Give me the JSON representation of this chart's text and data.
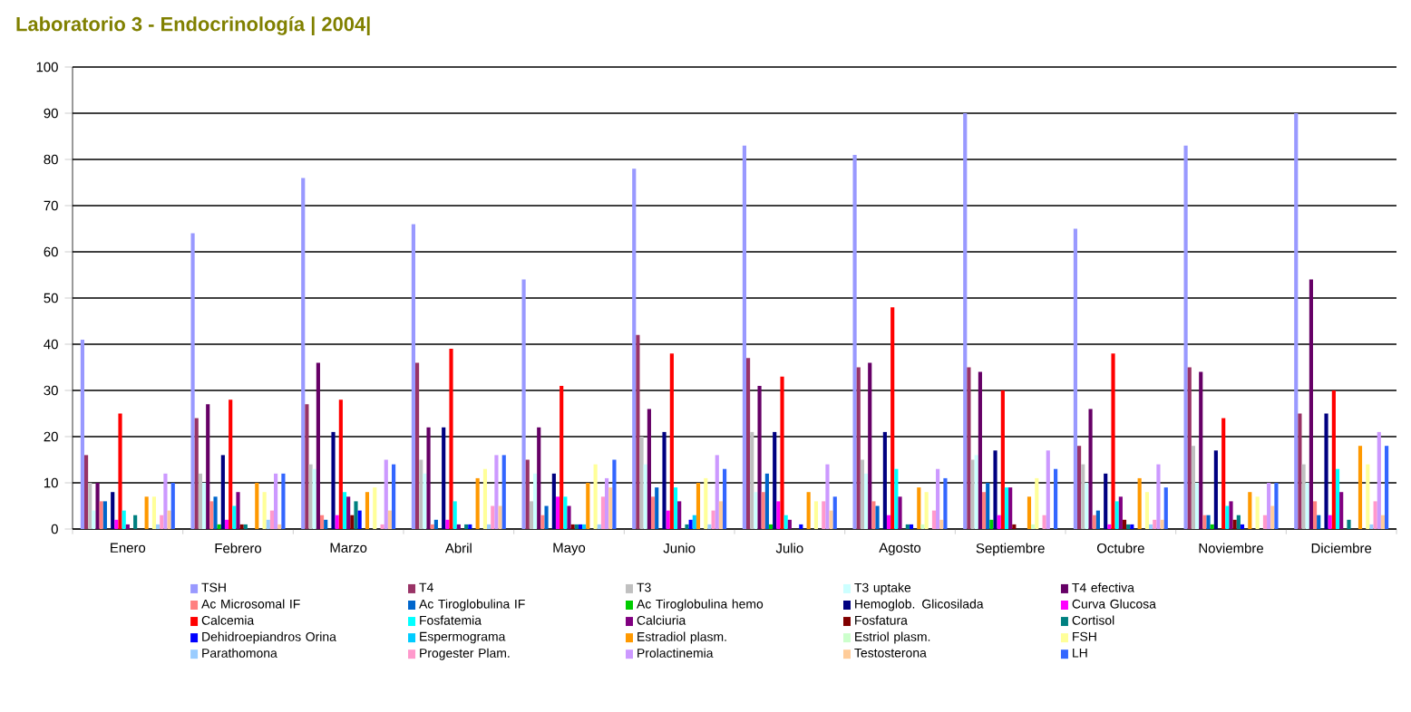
{
  "chart_data": {
    "type": "bar",
    "title": "Laboratorio 3 - Endocrinología | 2004|",
    "categories": [
      "Enero",
      "Febrero",
      "Marzo",
      "Abril",
      "Mayo",
      "Junio",
      "Julio",
      "Agosto",
      "Septiembre",
      "Octubre",
      "Noviembre",
      "Diciembre"
    ],
    "ylim": [
      0,
      100
    ],
    "yticks": [
      0,
      10,
      20,
      30,
      40,
      50,
      60,
      70,
      80,
      90,
      100
    ],
    "grid": "y",
    "legend": "bottom",
    "series": [
      {
        "name": "TSH",
        "color": "#9999ff",
        "values": [
          41,
          64,
          76,
          66,
          54,
          78,
          83,
          81,
          90,
          65,
          83,
          90
        ]
      },
      {
        "name": "T4",
        "color": "#993366",
        "values": [
          16,
          24,
          27,
          36,
          15,
          42,
          37,
          35,
          35,
          18,
          35,
          25
        ]
      },
      {
        "name": "T3",
        "color": "#c0c0c0",
        "values": [
          10,
          12,
          14,
          15,
          6,
          20,
          21,
          15,
          15,
          14,
          18,
          14
        ]
      },
      {
        "name": "T3 uptake",
        "color": "#ccffff",
        "values": [
          4,
          10,
          13,
          12,
          12,
          14,
          8,
          12,
          16,
          10,
          10,
          10
        ]
      },
      {
        "name": "T4 efectiva",
        "color": "#660066",
        "values": [
          10,
          27,
          36,
          22,
          22,
          26,
          31,
          36,
          34,
          26,
          34,
          54
        ]
      },
      {
        "name": "Ac Microsomal IF",
        "color": "#ff8080",
        "values": [
          6,
          6,
          3,
          1,
          3,
          7,
          8,
          6,
          8,
          3,
          3,
          6
        ]
      },
      {
        "name": "Ac Tiroglobulina IF",
        "color": "#0066cc",
        "values": [
          6,
          7,
          2,
          2,
          5,
          9,
          12,
          5,
          10,
          4,
          3,
          3
        ]
      },
      {
        "name": "Ac Tiroglobulina hemo",
        "color": "#00cc00",
        "values": [
          0,
          1,
          0,
          0,
          0,
          0,
          1,
          0,
          2,
          0,
          1,
          0
        ]
      },
      {
        "name": "Hemoglob. Glicosilada",
        "color": "#000080",
        "values": [
          8,
          16,
          21,
          22,
          12,
          21,
          21,
          21,
          17,
          12,
          17,
          25
        ]
      },
      {
        "name": "Curva Glucosa",
        "color": "#ff00ff",
        "values": [
          2,
          2,
          3,
          2,
          7,
          4,
          6,
          3,
          3,
          1,
          0,
          3
        ]
      },
      {
        "name": "Calcemia",
        "color": "#ff0000",
        "values": [
          25,
          28,
          28,
          39,
          31,
          38,
          33,
          48,
          30,
          38,
          24,
          30
        ]
      },
      {
        "name": "Fosfatemia",
        "color": "#00ffff",
        "values": [
          4,
          5,
          8,
          6,
          7,
          9,
          3,
          13,
          9,
          6,
          5,
          13
        ]
      },
      {
        "name": "Calciuria",
        "color": "#800080",
        "values": [
          1,
          8,
          7,
          1,
          5,
          6,
          2,
          7,
          9,
          7,
          6,
          8
        ]
      },
      {
        "name": "Fosfatura",
        "color": "#800000",
        "values": [
          0,
          1,
          3,
          0,
          1,
          0,
          0,
          0,
          1,
          2,
          2,
          0
        ]
      },
      {
        "name": "Cortisol",
        "color": "#008080",
        "values": [
          3,
          1,
          6,
          1,
          1,
          1,
          0,
          1,
          0,
          1,
          3,
          2
        ]
      },
      {
        "name": "Dehidroepiandros Orina",
        "color": "#0000ff",
        "values": [
          0,
          0,
          4,
          1,
          1,
          2,
          1,
          1,
          0,
          1,
          1,
          0
        ]
      },
      {
        "name": "Espermograma",
        "color": "#00ccff",
        "values": [
          0,
          0,
          0,
          0,
          1,
          3,
          0,
          0,
          0,
          0,
          0,
          0
        ]
      },
      {
        "name": "Estradiol plasm.",
        "color": "#ff9900",
        "values": [
          7,
          10,
          8,
          11,
          10,
          10,
          8,
          9,
          7,
          11,
          8,
          18
        ]
      },
      {
        "name": "Estriol plasm.",
        "color": "#ccffcc",
        "values": [
          0,
          0,
          0,
          0,
          0,
          0,
          0,
          1,
          1,
          0,
          0,
          0
        ]
      },
      {
        "name": "FSH",
        "color": "#ffff99",
        "values": [
          7,
          8,
          9,
          13,
          14,
          11,
          6,
          8,
          11,
          8,
          7,
          14
        ]
      },
      {
        "name": "Parathomona",
        "color": "#99ccff",
        "values": [
          1,
          2,
          0,
          1,
          1,
          1,
          0,
          0,
          0,
          1,
          0,
          1
        ]
      },
      {
        "name": "Progester Plam.",
        "color": "#ff99cc",
        "values": [
          3,
          4,
          1,
          5,
          7,
          4,
          6,
          4,
          3,
          2,
          3,
          6
        ]
      },
      {
        "name": "Prolactinemia",
        "color": "#cc99ff",
        "values": [
          12,
          12,
          15,
          16,
          11,
          16,
          14,
          13,
          17,
          14,
          10,
          21
        ]
      },
      {
        "name": "Testosterona",
        "color": "#ffcc99",
        "values": [
          4,
          1,
          4,
          5,
          9,
          6,
          4,
          2,
          0,
          2,
          5,
          3
        ]
      },
      {
        "name": "LH",
        "color": "#3366ff",
        "values": [
          10,
          12,
          14,
          16,
          15,
          13,
          7,
          11,
          13,
          9,
          10,
          18
        ]
      }
    ]
  }
}
